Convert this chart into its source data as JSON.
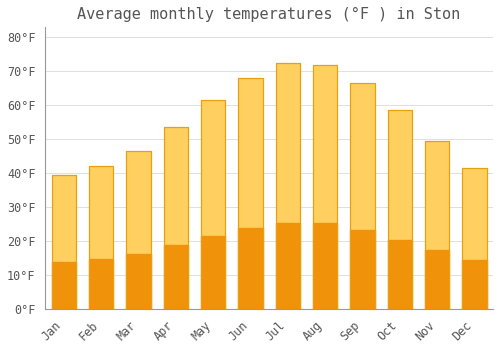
{
  "title": "Average monthly temperatures (°F ) in Ston",
  "months": [
    "Jan",
    "Feb",
    "Mar",
    "Apr",
    "May",
    "Jun",
    "Jul",
    "Aug",
    "Sep",
    "Oct",
    "Nov",
    "Dec"
  ],
  "values": [
    39.5,
    42.0,
    46.5,
    53.5,
    61.5,
    68.0,
    72.5,
    72.0,
    66.5,
    58.5,
    49.5,
    41.5
  ],
  "bar_color_top": "#FFD060",
  "bar_color_bottom": "#F0920A",
  "bar_edge_color": "#E8A010",
  "background_color": "#FFFFFF",
  "grid_color": "#E0E0E0",
  "text_color": "#555555",
  "axis_color": "#999999",
  "ylim": [
    0,
    83
  ],
  "yticks": [
    0,
    10,
    20,
    30,
    40,
    50,
    60,
    70,
    80
  ],
  "title_fontsize": 11,
  "tick_fontsize": 8.5
}
